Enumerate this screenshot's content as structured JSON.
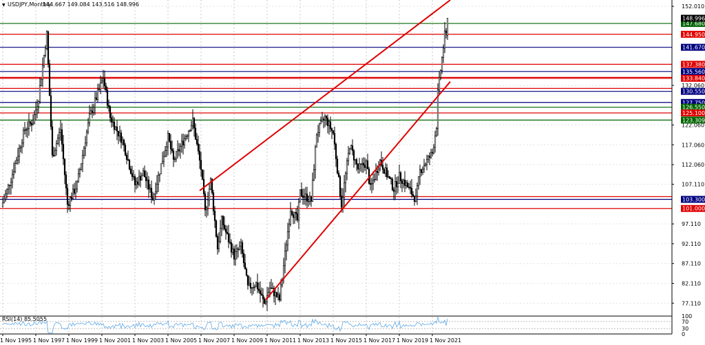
{
  "header": {
    "symbol": "USDJPY,Monthly",
    "ohlc": "144.667 149.084 143.516 148.996",
    "indicator": "RSI(14) 85.5055"
  },
  "chart_data": {
    "type": "candlestick",
    "title": "USDJPY,Monthly",
    "price_axis": {
      "range": [
        74.2,
        153.6
      ],
      "ticks": [
        "152.010",
        "132.060",
        "122.060",
        "117.060",
        "112.060",
        "107.110",
        "97.110",
        "92.110",
        "87.110",
        "82.110",
        "77.110"
      ]
    },
    "rsi_axis": {
      "range": [
        0,
        100
      ],
      "ticks": [
        "100",
        "70",
        "30",
        "0"
      ],
      "last_value": 85.5055
    },
    "time_axis": {
      "range": [
        "1995-11",
        "2022-09"
      ],
      "ticks": [
        "1 Nov 1995",
        "1 Nov 1997",
        "1 Nov 1999",
        "1 Nov 2001",
        "1 Nov 2003",
        "1 Nov 2005",
        "1 Nov 2007",
        "1 Nov 2009",
        "1 Nov 2011",
        "1 Nov 2013",
        "1 Nov 2015",
        "1 Nov 2017",
        "1 Nov 2019",
        "1 Nov 2021"
      ]
    },
    "price_anchors": [
      [
        "1995-11",
        101.5
      ],
      [
        "1996-06",
        108.5
      ],
      [
        "1997-04",
        121.0
      ],
      [
        "1997-10",
        123.0
      ],
      [
        "1998-02",
        129.0
      ],
      [
        "1998-08",
        145.0
      ],
      [
        "1998-12",
        114.0
      ],
      [
        "1999-06",
        121.0
      ],
      [
        "1999-11",
        102.0
      ],
      [
        "2000-06",
        107.0
      ],
      [
        "2001-03",
        124.0
      ],
      [
        "2002-01",
        134.0
      ],
      [
        "2002-06",
        124.0
      ],
      [
        "2003-03",
        118.0
      ],
      [
        "2003-12",
        107.0
      ],
      [
        "2004-06",
        110.0
      ],
      [
        "2005-01",
        103.5
      ],
      [
        "2005-12",
        119.0
      ],
      [
        "2006-04",
        113.0
      ],
      [
        "2007-06",
        123.0
      ],
      [
        "2007-12",
        111.0
      ],
      [
        "2008-03",
        100.0
      ],
      [
        "2008-07",
        108.0
      ],
      [
        "2008-12",
        91.0
      ],
      [
        "2009-03",
        98.0
      ],
      [
        "2009-12",
        89.0
      ],
      [
        "2010-05",
        91.5
      ],
      [
        "2010-10",
        81.0
      ],
      [
        "2011-04",
        82.0
      ],
      [
        "2011-10",
        77.0
      ],
      [
        "2012-02",
        81.0
      ],
      [
        "2012-09",
        78.0
      ],
      [
        "2013-05",
        101.0
      ],
      [
        "2013-10",
        98.0
      ],
      [
        "2013-12",
        105.0
      ],
      [
        "2014-08",
        103.0
      ],
      [
        "2014-12",
        120.0
      ],
      [
        "2015-06",
        124.0
      ],
      [
        "2015-12",
        120.0
      ],
      [
        "2016-06",
        102.0
      ],
      [
        "2016-12",
        117.0
      ],
      [
        "2017-06",
        111.0
      ],
      [
        "2017-12",
        112.5
      ],
      [
        "2018-03",
        106.0
      ],
      [
        "2018-10",
        113.0
      ],
      [
        "2019-08",
        106.0
      ],
      [
        "2019-12",
        109.0
      ],
      [
        "2020-03",
        108.0
      ],
      [
        "2020-12",
        103.3
      ],
      [
        "2021-03",
        110.5
      ],
      [
        "2021-12",
        115.0
      ],
      [
        "2022-03",
        122.0
      ],
      [
        "2022-04",
        130.0
      ],
      [
        "2022-06",
        136.0
      ],
      [
        "2022-09",
        144.7
      ]
    ],
    "last_candle": {
      "date": "2022-10",
      "open": 144.667,
      "high": 149.084,
      "low": 143.516,
      "close": 148.996
    },
    "levels": [
      {
        "value": 147.68,
        "label": "147.680",
        "color": "#006400",
        "kind": "line"
      },
      {
        "value": 144.95,
        "label": "144.950",
        "color": "#e00000",
        "kind": "line"
      },
      {
        "value": 141.67,
        "label": "141.670",
        "color": "#000080",
        "kind": "line"
      },
      {
        "value": 137.38,
        "label": "137.380",
        "color": "#e00000",
        "kind": "line"
      },
      {
        "value": 135.56,
        "label": "135.560",
        "color": "#000080",
        "kind": "line"
      },
      {
        "value": 134.08,
        "label": "",
        "color": "#e00000",
        "kind": "line"
      },
      {
        "value": 133.84,
        "label": "133.840",
        "color": "#e00000",
        "kind": "line"
      },
      {
        "value": 131.3,
        "label": "",
        "color": "#e00000",
        "kind": "line"
      },
      {
        "value": 130.55,
        "label": "130.550",
        "color": "#000080",
        "kind": "line"
      },
      {
        "value": 127.75,
        "label": "127.750",
        "color": "#000080",
        "kind": "line"
      },
      {
        "value": 126.55,
        "label": "126.550",
        "color": "#006400",
        "kind": "line"
      },
      {
        "value": 125.1,
        "label": "125.100",
        "color": "#e00000",
        "kind": "line"
      },
      {
        "value": 123.309,
        "label": "123.309",
        "color": "#006400",
        "kind": "line"
      },
      {
        "value": 104.0,
        "label": "",
        "color": "#e00000",
        "kind": "line"
      },
      {
        "value": 103.3,
        "label": "103.300",
        "color": "#000080",
        "kind": "line"
      },
      {
        "value": 101.0,
        "label": "101.000",
        "color": "#e00000",
        "kind": "line"
      }
    ],
    "current_price": {
      "value": 148.996,
      "label": "148.996",
      "color": "#000000"
    },
    "channel": {
      "color": "#e00000",
      "upper": [
        [
          "2007-10",
          105.5
        ],
        [
          "2022-12",
          153.6
        ]
      ],
      "lower": [
        [
          "2011-10",
          78.0
        ],
        [
          "2022-12",
          133.0
        ]
      ]
    }
  }
}
